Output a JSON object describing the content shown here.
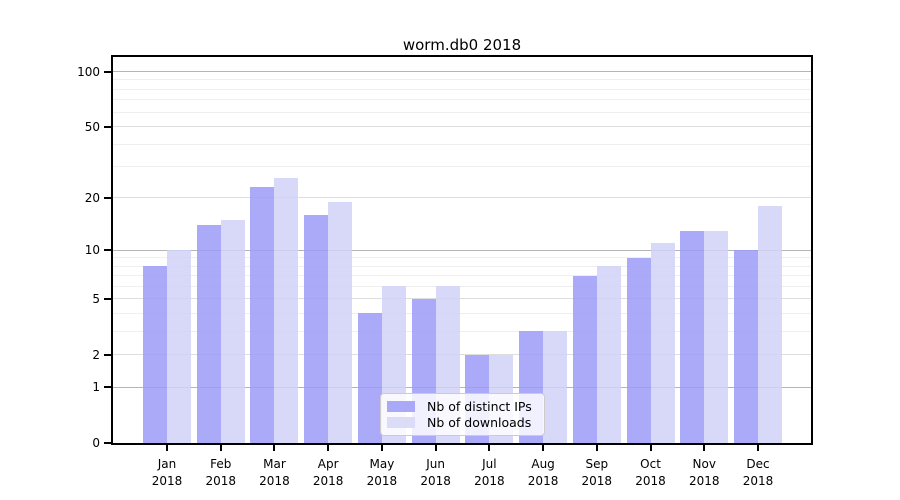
{
  "chart_data": {
    "type": "bar",
    "title": "worm.db0 2018",
    "categories": [
      "Jan 2018",
      "Feb 2018",
      "Mar 2018",
      "Apr 2018",
      "May 2018",
      "Jun 2018",
      "Jul 2018",
      "Aug 2018",
      "Sep 2018",
      "Oct 2018",
      "Nov 2018",
      "Dec 2018"
    ],
    "x_tick_line1": [
      "Jan",
      "Feb",
      "Mar",
      "Apr",
      "May",
      "Jun",
      "Jul",
      "Aug",
      "Sep",
      "Oct",
      "Nov",
      "Dec"
    ],
    "x_tick_line2": "2018",
    "series": [
      {
        "name": "Nb of distinct IPs",
        "color": "rgba(155,155,248,0.85)",
        "swatch_color": "#a9a9f8",
        "values": [
          8,
          14,
          23,
          16,
          4,
          5,
          2,
          3,
          7,
          9,
          13,
          10
        ]
      },
      {
        "name": "Nb of downloads",
        "color": "rgba(209,209,247,0.85)",
        "swatch_color": "#dcdcf9",
        "values": [
          10,
          15,
          26,
          19,
          6,
          6,
          2,
          3,
          8,
          11,
          13,
          18
        ]
      }
    ],
    "y_axis": {
      "scale": "log1p",
      "major_ticks": [
        0,
        1,
        2,
        5,
        10,
        20,
        50,
        100
      ],
      "minor_gridlines": [
        3,
        4,
        6,
        7,
        8,
        9,
        30,
        40,
        60,
        70,
        80,
        90
      ],
      "max": 120
    },
    "xlabel": "",
    "ylabel": "",
    "grid": true,
    "legend_position": "inside-bottom-center"
  },
  "colors": {
    "gridline_decade": "#b5b5b5",
    "gridline_mid": "#dedede",
    "gridline_minor": "#efefef",
    "spine": "#000000",
    "text": "#000000",
    "legend_border": "#cccccc"
  }
}
